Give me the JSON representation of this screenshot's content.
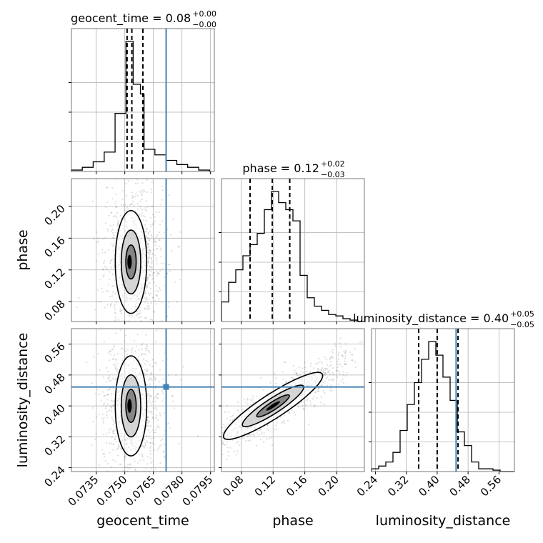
{
  "chart_data": [
    {
      "type": "histogram",
      "param": "geocent_time",
      "title": "geocent_time = 0.08",
      "title_super": "+0.00",
      "title_sub": "−0.00",
      "xlim": [
        0.0722,
        0.0797
      ],
      "xticks": [
        0.0735,
        0.075,
        0.0765,
        0.078,
        0.0795
      ],
      "xticklabels": [],
      "grid": true,
      "truth": 0.07717,
      "quantiles": [
        0.07512,
        0.07537,
        0.07595
      ],
      "bin_edges": [
        0.0722,
        0.07277,
        0.07334,
        0.07392,
        0.07449,
        0.07506,
        0.07525,
        0.07544,
        0.07563,
        0.07582,
        0.07601,
        0.07658,
        0.07716,
        0.07773,
        0.0783,
        0.07888,
        0.07945
      ],
      "counts": [
        0.01,
        0.03,
        0.07,
        0.14,
        0.42,
        0.94,
        0.94,
        0.63,
        0.63,
        0.56,
        0.16,
        0.12,
        0.08,
        0.05,
        0.03,
        0.01
      ]
    },
    {
      "type": "histogram",
      "param": "phase",
      "title": "phase = 0.12",
      "title_super": "+0.02",
      "title_sub": "−0.03",
      "xlim": [
        0.055,
        0.235
      ],
      "xticks": [
        0.08,
        0.12,
        0.16,
        0.2
      ],
      "xticklabels": [],
      "grid": true,
      "quantiles": [
        0.091,
        0.119,
        0.141
      ],
      "bin_edges": [
        0.055,
        0.064,
        0.073,
        0.082,
        0.091,
        0.1,
        0.109,
        0.118,
        0.127,
        0.136,
        0.145,
        0.154,
        0.163,
        0.172,
        0.181,
        0.19,
        0.199,
        0.208,
        0.217,
        0.226,
        0.235
      ],
      "counts": [
        0.14,
        0.28,
        0.37,
        0.47,
        0.55,
        0.63,
        0.8,
        0.93,
        0.85,
        0.8,
        0.72,
        0.33,
        0.17,
        0.11,
        0.08,
        0.05,
        0.04,
        0.02,
        0.01,
        0.0
      ]
    },
    {
      "type": "histogram",
      "param": "luminosity_distance",
      "title": "luminosity_distance = 0.40",
      "title_super": "+0.05",
      "title_sub": "−0.05",
      "xlim": [
        0.23,
        0.6
      ],
      "xticks": [
        0.24,
        0.32,
        0.4,
        0.48,
        0.56
      ],
      "xticklabels": [
        "0.24",
        "0.32",
        "0.40",
        "0.48",
        "0.56"
      ],
      "xlabel": "luminosity_distance",
      "grid": true,
      "truth": 0.449,
      "quantiles": [
        0.352,
        0.4,
        0.454
      ],
      "bin_edges": [
        0.23,
        0.2485,
        0.267,
        0.2855,
        0.304,
        0.3225,
        0.341,
        0.3595,
        0.378,
        0.3965,
        0.415,
        0.4335,
        0.452,
        0.4705,
        0.489,
        0.5075,
        0.526,
        0.5445,
        0.563,
        0.5815,
        0.6
      ],
      "counts": [
        0.02,
        0.04,
        0.07,
        0.14,
        0.3,
        0.49,
        0.65,
        0.82,
        0.95,
        0.85,
        0.69,
        0.52,
        0.29,
        0.19,
        0.07,
        0.02,
        0.02,
        0.01,
        0.0,
        0.0
      ]
    },
    {
      "type": "scatter",
      "subtype": "2d-density-contour",
      "x_param": "geocent_time",
      "y_param": "phase",
      "xlim": [
        0.0722,
        0.0797
      ],
      "ylim": [
        0.055,
        0.235
      ],
      "yticks": [
        0.08,
        0.12,
        0.16,
        0.2
      ],
      "yticklabels": [
        "0.08",
        "0.12",
        "0.16",
        "0.20"
      ],
      "ylabel": "phase",
      "grid": true,
      "truth_x": 0.07717,
      "peak": [
        0.07525,
        0.13
      ]
    },
    {
      "type": "scatter",
      "subtype": "2d-density-contour",
      "x_param": "geocent_time",
      "y_param": "luminosity_distance",
      "xlim": [
        0.0722,
        0.0797
      ],
      "ylim": [
        0.23,
        0.6
      ],
      "xticks": [
        0.0735,
        0.075,
        0.0765,
        0.078,
        0.0795
      ],
      "xticklabels": [
        "0.0735",
        "0.0750",
        "0.0765",
        "0.0780",
        "0.0795"
      ],
      "yticks": [
        0.24,
        0.32,
        0.4,
        0.48,
        0.56
      ],
      "yticklabels": [
        "0.24",
        "0.32",
        "0.40",
        "0.48",
        "0.56"
      ],
      "xlabel": "geocent_time",
      "ylabel": "luminosity_distance",
      "grid": true,
      "truth_x": 0.07717,
      "truth_y": 0.449,
      "peak": [
        0.07525,
        0.4
      ]
    },
    {
      "type": "scatter",
      "subtype": "2d-density-contour",
      "x_param": "phase",
      "y_param": "luminosity_distance",
      "xlim": [
        0.055,
        0.235
      ],
      "ylim": [
        0.23,
        0.6
      ],
      "xticks": [
        0.08,
        0.12,
        0.16,
        0.2
      ],
      "xticklabels": [
        "0.08",
        "0.12",
        "0.16",
        "0.20"
      ],
      "xlabel": "phase",
      "grid": true,
      "truth_y": 0.449,
      "peak": [
        0.12,
        0.4
      ]
    }
  ],
  "colors": {
    "truth": "#4682b4",
    "hist": "#000000",
    "grid": "#b0b0b0",
    "points": "#000000"
  }
}
